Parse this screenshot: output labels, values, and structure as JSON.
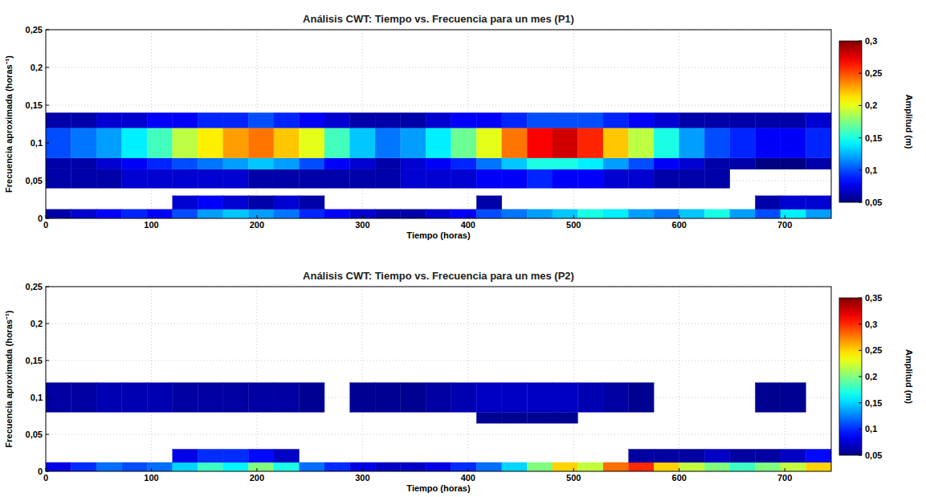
{
  "chart_data": [
    {
      "type": "heatmap",
      "title": "Análisis CWT: Tiempo vs. Frecuencia para un mes (P1)",
      "x_label": "Tiempo (horas)",
      "y_label": "Frecuencia aproximada (horas⁻¹)",
      "xlim": [
        0,
        744
      ],
      "ylim": [
        0,
        0.25
      ],
      "xticks": [
        0,
        100,
        200,
        300,
        400,
        500,
        600,
        700
      ],
      "yticks": [
        0,
        {
          "value": 0.05,
          "label": "0,05"
        },
        {
          "value": 0.1,
          "label": "0,1"
        },
        {
          "value": 0.15,
          "label": "0,15"
        },
        {
          "value": 0.2,
          "label": "0,2"
        },
        {
          "value": 0.25,
          "label": "0,25"
        }
      ],
      "grid": true,
      "xbins": [
        0,
        24,
        48,
        72,
        96,
        120,
        144,
        168,
        192,
        216,
        240,
        264,
        288,
        312,
        336,
        360,
        384,
        408,
        432,
        456,
        480,
        504,
        528,
        552,
        576,
        600,
        624,
        648,
        672,
        696,
        720,
        744
      ],
      "ybins": [
        0,
        0.012,
        0.03,
        0.04,
        0.065,
        0.08,
        0.12,
        0.14
      ],
      "cells": [
        [
          0.06,
          0.07,
          0.08,
          0.09,
          0.08,
          0.1,
          0.12,
          0.13,
          0.12,
          0.11,
          0.09,
          0.08,
          0.07,
          0.06,
          0.06,
          0.07,
          0.08,
          0.1,
          0.11,
          0.12,
          0.13,
          0.15,
          0.14,
          0.12,
          0.11,
          0.13,
          0.15,
          0.12,
          0.1,
          0.14,
          0.12
        ],
        [
          null,
          null,
          null,
          null,
          null,
          0.07,
          0.08,
          0.07,
          0.06,
          0.07,
          0.06,
          null,
          null,
          null,
          null,
          null,
          null,
          0.06,
          null,
          null,
          null,
          null,
          null,
          null,
          null,
          null,
          null,
          null,
          0.06,
          0.07,
          0.07
        ],
        [
          null,
          null,
          null,
          null,
          null,
          null,
          null,
          null,
          null,
          null,
          null,
          null,
          null,
          null,
          null,
          null,
          null,
          null,
          null,
          null,
          null,
          null,
          null,
          null,
          null,
          null,
          null,
          null,
          null,
          null,
          null
        ],
        [
          0.06,
          0.06,
          0.06,
          0.07,
          0.07,
          0.07,
          0.07,
          0.07,
          0.06,
          0.06,
          0.06,
          0.06,
          0.06,
          0.06,
          0.07,
          0.07,
          0.07,
          0.08,
          0.08,
          0.09,
          0.08,
          0.08,
          0.07,
          0.07,
          0.06,
          0.06,
          0.06,
          null,
          null,
          null,
          null
        ],
        [
          0.06,
          0.06,
          0.07,
          0.08,
          0.09,
          0.1,
          0.11,
          0.12,
          0.13,
          0.12,
          0.1,
          0.08,
          0.07,
          0.06,
          0.07,
          0.08,
          0.09,
          0.11,
          0.13,
          0.15,
          0.15,
          0.14,
          0.12,
          0.1,
          0.08,
          0.07,
          0.06,
          0.06,
          0.05,
          0.05,
          0.06
        ],
        [
          0.1,
          0.11,
          0.12,
          0.14,
          0.16,
          0.19,
          0.21,
          0.23,
          0.24,
          0.22,
          0.2,
          0.16,
          0.13,
          0.11,
          0.12,
          0.14,
          0.17,
          0.2,
          0.24,
          0.27,
          0.28,
          0.26,
          0.22,
          0.19,
          0.15,
          0.12,
          0.1,
          0.09,
          0.08,
          0.08,
          0.09
        ],
        [
          0.06,
          0.06,
          0.07,
          0.07,
          0.08,
          0.08,
          0.09,
          0.09,
          0.1,
          0.09,
          0.08,
          0.07,
          0.06,
          0.06,
          0.06,
          0.07,
          0.08,
          0.08,
          0.09,
          0.1,
          0.1,
          0.1,
          0.09,
          0.08,
          0.07,
          0.06,
          0.06,
          0.06,
          0.06,
          0.06,
          0.07
        ]
      ],
      "colorbar_label": "Amplitud (m)",
      "clim": [
        0.05,
        0.3
      ],
      "cticks": [
        {
          "value": 0.05,
          "label": "0,05"
        },
        {
          "value": 0.1,
          "label": "0,1"
        },
        {
          "value": 0.15,
          "label": "0,15"
        },
        {
          "value": 0.2,
          "label": "0,2"
        },
        {
          "value": 0.25,
          "label": "0,25"
        },
        {
          "value": 0.3,
          "label": "0,3"
        }
      ]
    },
    {
      "type": "heatmap",
      "title": "Análisis CWT: Tiempo vs. Frecuencia para un mes (P2)",
      "x_label": "Tiempo (horas)",
      "y_label": "Frecuencia aproximada (horas⁻¹)",
      "xlim": [
        0,
        744
      ],
      "ylim": [
        0,
        0.25
      ],
      "xticks": [
        0,
        100,
        200,
        300,
        400,
        500,
        600,
        700
      ],
      "yticks": [
        0,
        {
          "value": 0.05,
          "label": "0,05"
        },
        {
          "value": 0.1,
          "label": "0,1"
        },
        {
          "value": 0.15,
          "label": "0,15"
        },
        {
          "value": 0.2,
          "label": "0,2"
        },
        {
          "value": 0.25,
          "label": "0,25"
        }
      ],
      "grid": true,
      "xbins": [
        0,
        24,
        48,
        72,
        96,
        120,
        144,
        168,
        192,
        216,
        240,
        264,
        288,
        312,
        336,
        360,
        384,
        408,
        432,
        456,
        480,
        504,
        528,
        552,
        576,
        600,
        624,
        648,
        672,
        696,
        720,
        744
      ],
      "ybins": [
        0,
        0.012,
        0.03,
        0.04,
        0.065,
        0.08,
        0.12,
        0.14
      ],
      "cells": [
        [
          0.08,
          0.1,
          0.12,
          0.11,
          0.12,
          0.15,
          0.18,
          0.16,
          0.2,
          0.17,
          0.12,
          0.1,
          0.08,
          0.07,
          0.07,
          0.08,
          0.1,
          0.12,
          0.15,
          0.2,
          0.25,
          0.22,
          0.28,
          0.3,
          0.25,
          0.22,
          0.2,
          0.18,
          0.2,
          0.22,
          0.25
        ],
        [
          null,
          null,
          null,
          null,
          null,
          0.08,
          0.1,
          0.1,
          0.09,
          0.07,
          null,
          null,
          null,
          null,
          null,
          null,
          null,
          null,
          null,
          null,
          null,
          null,
          null,
          0.06,
          0.06,
          0.06,
          0.07,
          0.06,
          0.06,
          0.07,
          0.09
        ],
        [
          null,
          null,
          null,
          null,
          null,
          null,
          null,
          null,
          null,
          null,
          null,
          null,
          null,
          null,
          null,
          null,
          null,
          null,
          null,
          null,
          null,
          null,
          null,
          null,
          null,
          null,
          null,
          null,
          null,
          null,
          null
        ],
        [
          null,
          null,
          null,
          null,
          null,
          null,
          null,
          null,
          null,
          null,
          null,
          null,
          null,
          null,
          null,
          null,
          null,
          null,
          null,
          null,
          null,
          null,
          null,
          null,
          null,
          null,
          null,
          null,
          null,
          null,
          null
        ],
        [
          null,
          null,
          null,
          null,
          null,
          null,
          null,
          null,
          null,
          null,
          null,
          null,
          null,
          null,
          null,
          null,
          null,
          0.055,
          0.055,
          0.055,
          0.055,
          null,
          null,
          null,
          null,
          null,
          null,
          null,
          null,
          null,
          null
        ],
        [
          0.06,
          0.06,
          0.065,
          0.065,
          0.065,
          0.06,
          0.06,
          0.06,
          0.06,
          0.06,
          0.055,
          null,
          0.055,
          0.055,
          0.055,
          0.06,
          0.065,
          0.07,
          0.07,
          0.07,
          0.07,
          0.065,
          0.06,
          0.055,
          null,
          null,
          null,
          null,
          0.055,
          0.055,
          null
        ],
        [
          null,
          null,
          null,
          null,
          null,
          null,
          null,
          null,
          null,
          null,
          null,
          null,
          null,
          null,
          null,
          null,
          null,
          null,
          null,
          null,
          null,
          null,
          null,
          null,
          null,
          null,
          null,
          null,
          null,
          null,
          null
        ]
      ],
      "colorbar_label": "Amplitud (m)",
      "clim": [
        0.05,
        0.35
      ],
      "cticks": [
        {
          "value": 0.05,
          "label": "0,05"
        },
        {
          "value": 0.1,
          "label": "0,1"
        },
        {
          "value": 0.15,
          "label": "0,15"
        },
        {
          "value": 0.2,
          "label": "0,2"
        },
        {
          "value": 0.25,
          "label": "0,25"
        },
        {
          "value": 0.3,
          "label": "0,3"
        },
        {
          "value": 0.35,
          "label": "0,35"
        }
      ]
    }
  ]
}
